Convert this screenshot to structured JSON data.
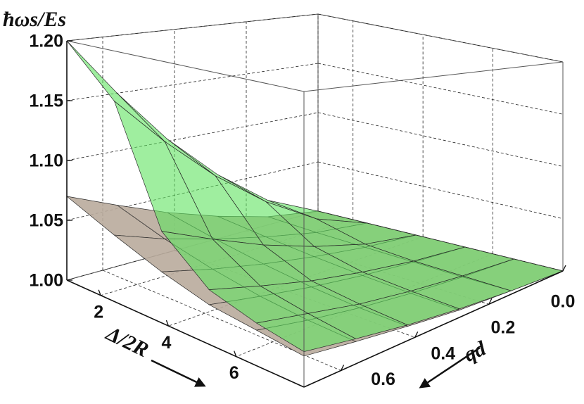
{
  "chart_data": {
    "type": "surface3d",
    "zlabel": "ħωs/Es",
    "xlabel": "Δ/2R",
    "ylabel": "qd",
    "x": [
      1,
      2.4,
      3.8,
      5.2,
      6.6,
      8
    ],
    "y": [
      0,
      0.14,
      0.28,
      0.42,
      0.56,
      0.7
    ],
    "xlim": [
      1,
      8
    ],
    "ylim": [
      0,
      0.7
    ],
    "zlim": [
      1.0,
      1.2
    ],
    "xticks": [
      2,
      4,
      6
    ],
    "yticks": [
      {
        "value": 0,
        "label": "0.0"
      },
      0.2,
      0.4,
      0.6
    ],
    "zticks": [
      {
        "value": 1.0,
        "label": "1.00"
      },
      1.05,
      {
        "value": 1.1,
        "label": "1.10"
      },
      1.15,
      {
        "value": 1.2,
        "label": "1.20"
      }
    ],
    "grid": true,
    "series": [
      {
        "color": "#b9ab9c",
        "z": [
          [
            1,
            1.008,
            1.021,
            1.036,
            1.053,
            1.07
          ],
          [
            1,
            1.006,
            1.016,
            1.027,
            1.039,
            1.053
          ],
          [
            1,
            1.005,
            1.012,
            1.02,
            1.029,
            1.039
          ],
          [
            1,
            1.004,
            1.009,
            1.015,
            1.022,
            1.029
          ],
          [
            1,
            1.003,
            1.007,
            1.012,
            1.018,
            1.025
          ],
          [
            1,
            1.003,
            1.006,
            1.011,
            1.016,
            1.021
          ]
        ]
      },
      {
        "color": "#5fe35f",
        "z": [
          [
            1,
            1.024,
            1.06,
            1.102,
            1.15,
            1.2
          ],
          [
            1,
            1.019,
            1.048,
            1.082,
            1.12,
            1.16
          ],
          [
            1,
            1.008,
            1.021,
            1.036,
            1.053,
            1.07
          ],
          [
            1,
            1.005,
            1.012,
            1.02,
            1.03,
            1.04
          ],
          [
            1,
            1.004,
            1.009,
            1.015,
            1.023,
            1.03
          ],
          [
            1,
            1.003,
            1.007,
            1.012,
            1.018,
            1.024
          ]
        ]
      }
    ]
  }
}
